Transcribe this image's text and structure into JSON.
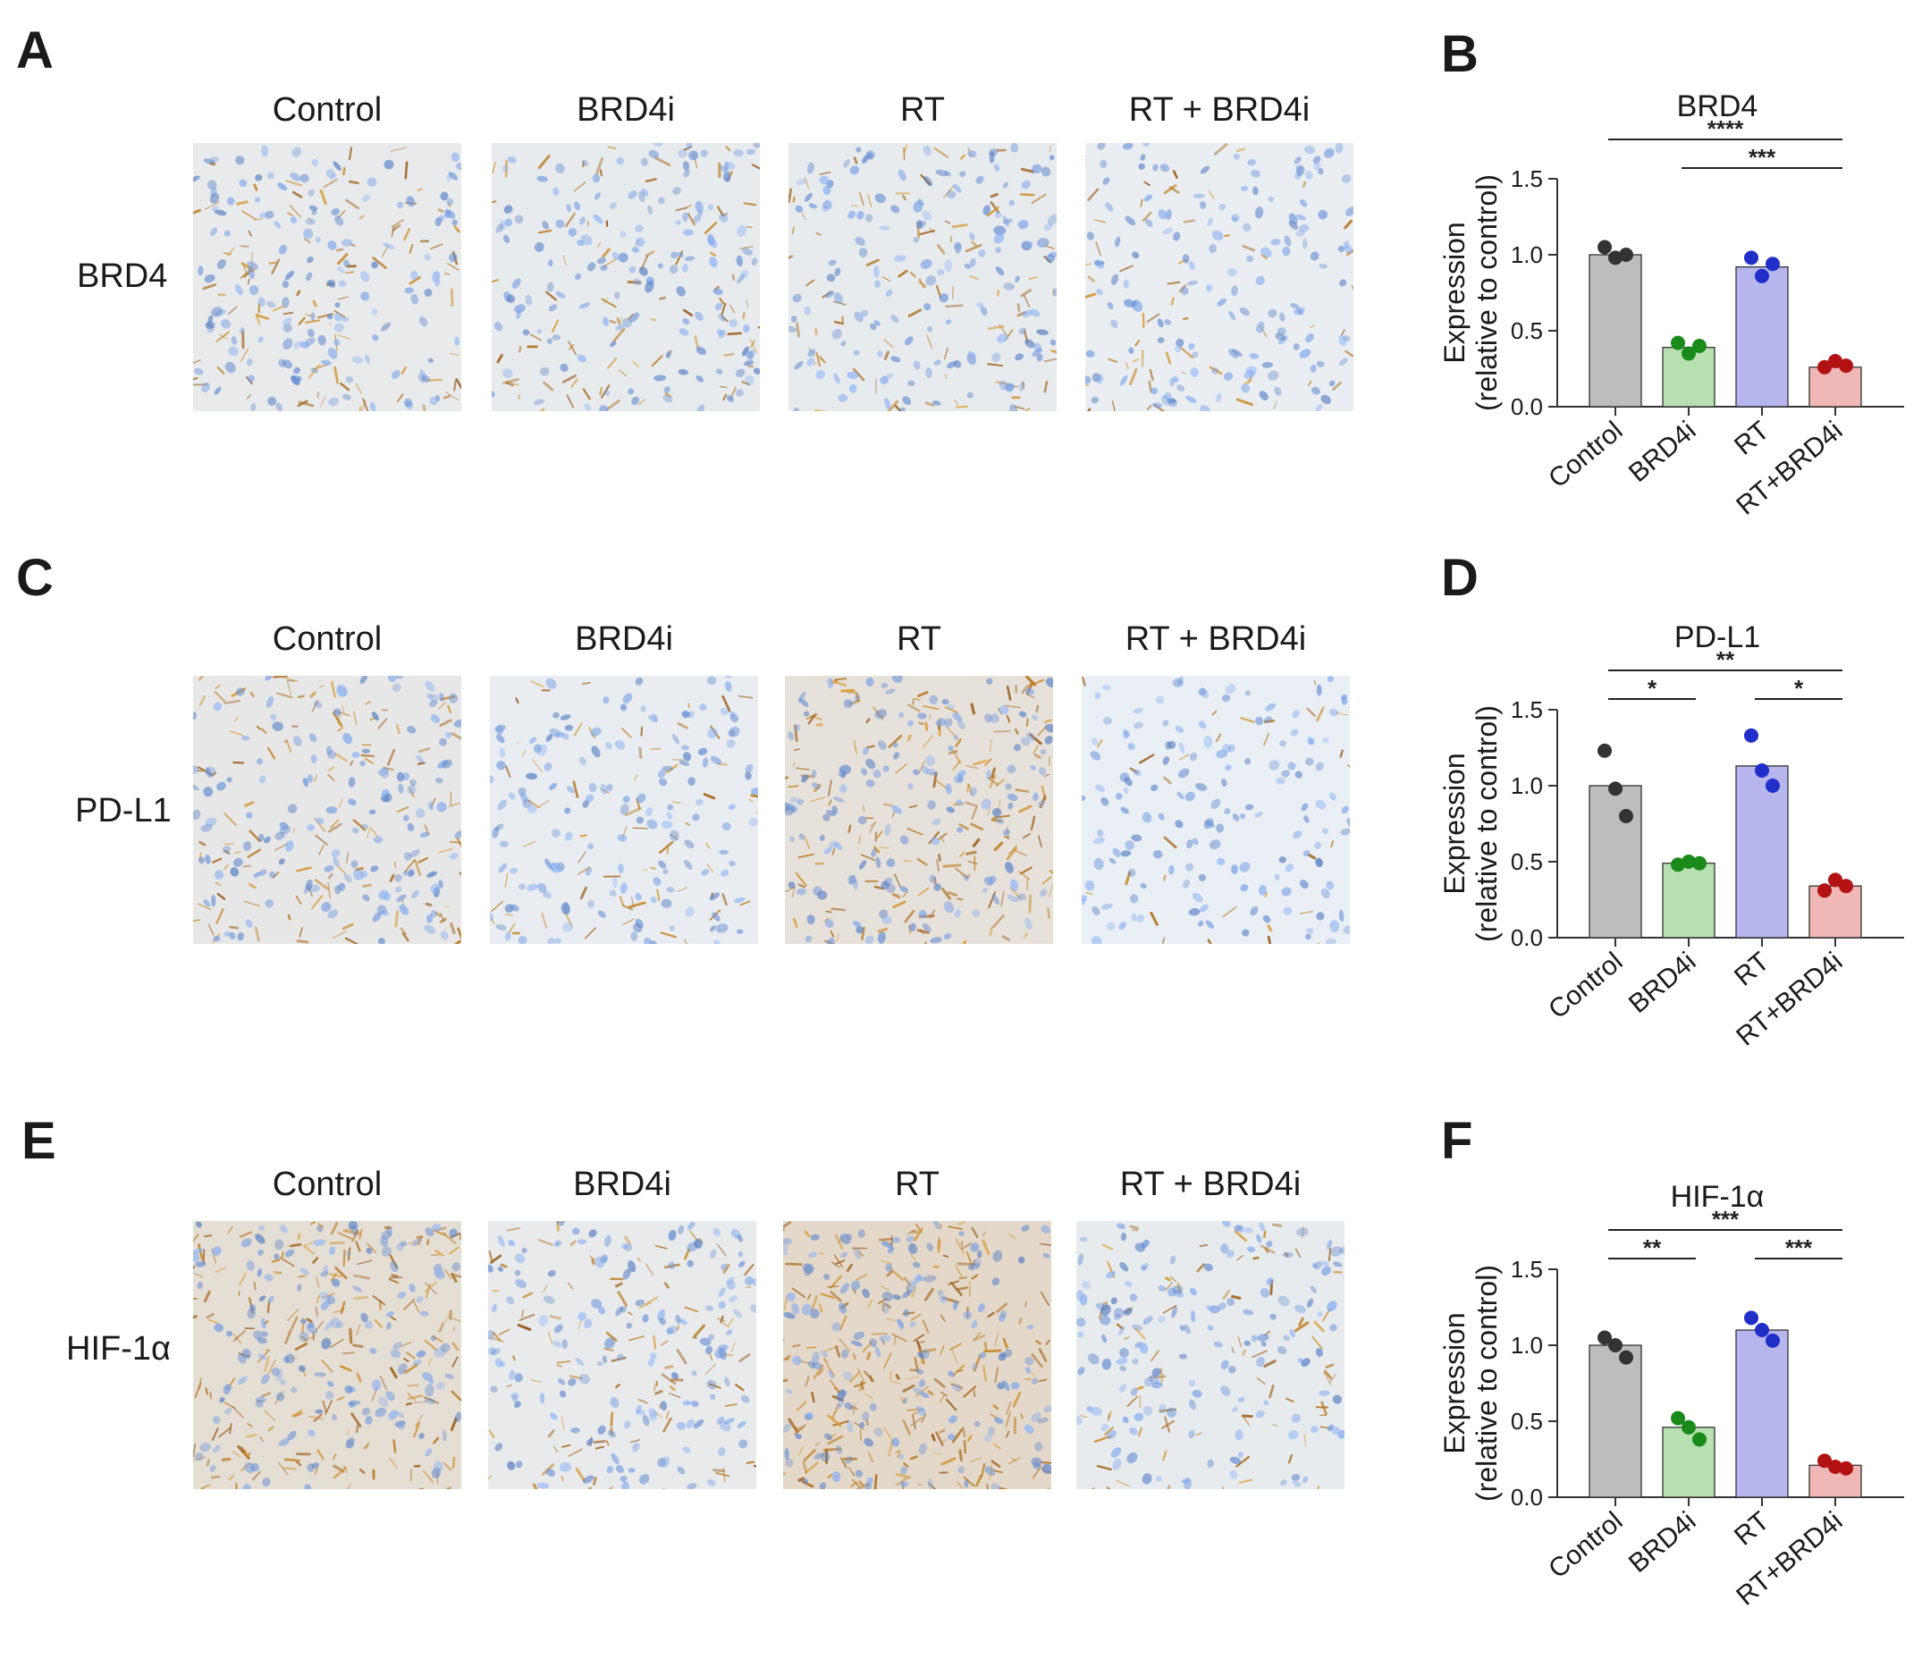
{
  "figure": {
    "colors": {
      "control": "#bdbdbd",
      "brd4i": "#b8e0b2",
      "rt": "#b7b5ee",
      "rt_brd4i": "#f0b7b7",
      "control_dot": "#333333",
      "brd4i_dot": "#1a8a1a",
      "rt_dot": "#1f2fc8",
      "rt_brd4i_dot": "#b31212"
    },
    "rows": [
      {
        "panel_letter": "A",
        "row_label": "BRD4",
        "columns": [
          "Control",
          "BRD4i",
          "RT",
          "RT + BRD4i"
        ],
        "stain_intensity": [
          0.35,
          0.3,
          0.3,
          0.15
        ]
      },
      {
        "panel_letter": "C",
        "row_label": "PD-L1",
        "columns": [
          "Control",
          "BRD4i",
          "RT",
          "RT + BRD4i"
        ],
        "stain_intensity": [
          0.45,
          0.2,
          0.65,
          0.05
        ]
      },
      {
        "panel_letter": "E",
        "row_label": "HIF-1α",
        "columns": [
          "Control",
          "BRD4i",
          "RT",
          "RT + BRD4i"
        ],
        "stain_intensity": [
          0.75,
          0.35,
          0.9,
          0.25
        ]
      }
    ]
  },
  "chart_data": [
    {
      "panel_letter": "B",
      "type": "bar",
      "title": "BRD4",
      "ylabel_line1": "Expression",
      "ylabel_line2": "(relative to control)",
      "categories": [
        "Control",
        "BRD4i",
        "RT",
        "RT+BRD4i"
      ],
      "values": [
        1.0,
        0.39,
        0.92,
        0.26
      ],
      "points": [
        [
          1.05,
          0.98,
          1.0
        ],
        [
          0.42,
          0.35,
          0.4
        ],
        [
          0.98,
          0.86,
          0.94
        ],
        [
          0.26,
          0.3,
          0.27
        ]
      ],
      "ylim": [
        0,
        1.5
      ],
      "yticks": [
        "0.0",
        "0.5",
        "1.0",
        "1.5"
      ],
      "significance": [
        {
          "from": 0,
          "to": 3,
          "label": "****",
          "level": 0
        },
        {
          "from": 1,
          "to": 3,
          "label": "***",
          "level": 1
        }
      ]
    },
    {
      "panel_letter": "D",
      "type": "bar",
      "title": "PD-L1",
      "ylabel_line1": "Expression",
      "ylabel_line2": "(relative to control)",
      "categories": [
        "Control",
        "BRD4i",
        "RT",
        "RT+BRD4i"
      ],
      "values": [
        1.0,
        0.49,
        1.13,
        0.34
      ],
      "points": [
        [
          1.23,
          0.98,
          0.8
        ],
        [
          0.48,
          0.5,
          0.49
        ],
        [
          1.33,
          1.1,
          1.0
        ],
        [
          0.31,
          0.38,
          0.34
        ]
      ],
      "ylim": [
        0,
        1.5
      ],
      "yticks": [
        "0.0",
        "0.5",
        "1.0",
        "1.5"
      ],
      "significance": [
        {
          "from": 0,
          "to": 3,
          "label": "**",
          "level": 0
        },
        {
          "from": 0,
          "to": 1,
          "label": "*",
          "level": 1
        },
        {
          "from": 2,
          "to": 3,
          "label": "*",
          "level": 1
        }
      ]
    },
    {
      "panel_letter": "F",
      "type": "bar",
      "title": "HIF-1α",
      "ylabel_line1": "Expression",
      "ylabel_line2": "(relative to control)",
      "categories": [
        "Control",
        "BRD4i",
        "RT",
        "RT+BRD4i"
      ],
      "values": [
        1.0,
        0.46,
        1.1,
        0.21
      ],
      "points": [
        [
          1.05,
          1.0,
          0.92
        ],
        [
          0.52,
          0.46,
          0.38
        ],
        [
          1.18,
          1.1,
          1.03
        ],
        [
          0.24,
          0.2,
          0.19
        ]
      ],
      "ylim": [
        0,
        1.5
      ],
      "yticks": [
        "0.0",
        "0.5",
        "1.0",
        "1.5"
      ],
      "significance": [
        {
          "from": 0,
          "to": 3,
          "label": "***",
          "level": 0
        },
        {
          "from": 0,
          "to": 1,
          "label": "**",
          "level": 1
        },
        {
          "from": 2,
          "to": 3,
          "label": "***",
          "level": 1
        }
      ]
    }
  ]
}
